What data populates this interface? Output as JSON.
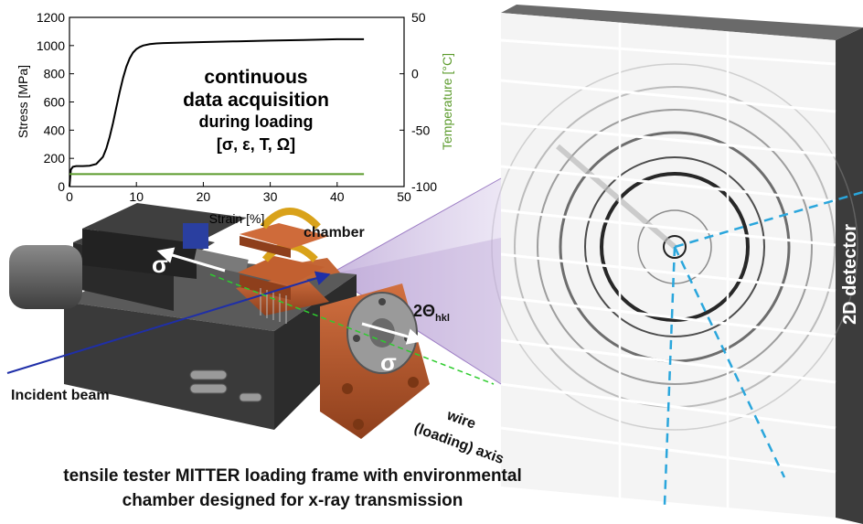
{
  "chart_data": {
    "type": "line",
    "xlabel": "Strain [%]",
    "ylabel": "Stress [MPa]",
    "y2label": "Temperature [°C]",
    "xlim": [
      0,
      50
    ],
    "ylim": [
      0,
      1200
    ],
    "y2lim": [
      -100,
      50
    ],
    "xticks": [
      "0",
      "10",
      "20",
      "30",
      "40",
      "50"
    ],
    "yticks": [
      "0",
      "200",
      "400",
      "600",
      "800",
      "1000",
      "1200"
    ],
    "y2ticks": [
      "-100",
      "-50",
      "0",
      "50"
    ],
    "grid": false,
    "series": [
      {
        "axis": "left",
        "color": "#000000",
        "x": [
          0,
          0.2,
          0.5,
          1,
          2,
          3,
          4,
          5,
          5.5,
          6,
          6.5,
          7,
          7.5,
          8,
          8.5,
          9,
          9.5,
          10,
          10.5,
          11,
          12,
          13,
          14,
          16,
          20,
          25,
          30,
          35,
          40,
          44
        ],
        "y": [
          0,
          120,
          140,
          145,
          145,
          148,
          160,
          210,
          270,
          350,
          450,
          560,
          670,
          770,
          850,
          910,
          950,
          975,
          990,
          1000,
          1010,
          1015,
          1018,
          1020,
          1025,
          1030,
          1035,
          1040,
          1045,
          1045
        ]
      },
      {
        "axis": "right",
        "color": "#5a9a2a",
        "x": [
          0,
          44
        ],
        "y": [
          -89,
          -89
        ]
      }
    ],
    "annotations": [
      "continuous",
      "data acquisition",
      "during loading",
      "[σ, ε, T, Ω]"
    ]
  },
  "labels": {
    "chamber": "chamber",
    "sigma_left": "σ",
    "sigma_right": "σ",
    "two_theta": "2Θ",
    "two_theta_sub": "hkl",
    "incident_beam": "Incident beam",
    "wire_line1": "wire",
    "wire_line2": "(loading) axis",
    "detector": "2D detector"
  },
  "caption": {
    "line1": "tensile tester MITTER loading frame with environmental",
    "line2": "chamber designed for x-ray transmission"
  },
  "colors": {
    "copper": "#b8562a",
    "frame_dark": "#3a3a3a",
    "beam": "#1f2fa8",
    "cone": "#b49ad2",
    "dashed_blue": "#2aa6dc",
    "temperature": "#5a9a2a"
  }
}
